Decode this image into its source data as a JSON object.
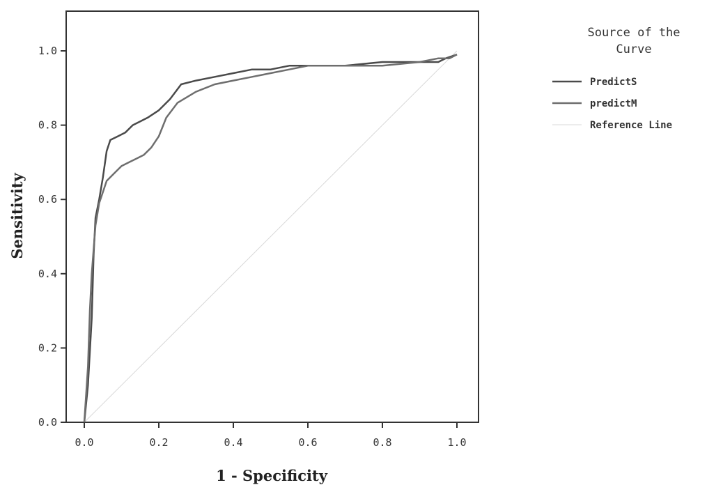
{
  "chart_data": {
    "type": "line",
    "xlabel": "1 - Specificity",
    "ylabel": "Sensitivity",
    "xlim": [
      0.0,
      1.0
    ],
    "ylim": [
      0.0,
      1.0
    ],
    "x_ticks": [
      "0.0",
      "0.2",
      "0.4",
      "0.6",
      "0.8",
      "1.0"
    ],
    "y_ticks": [
      "0.0",
      "0.2",
      "0.4",
      "0.6",
      "0.8",
      "1.0"
    ],
    "grid": false,
    "legend": {
      "title_line1": "Source of the",
      "title_line2": "Curve",
      "position": "top-right"
    },
    "series": [
      {
        "name": "PredictS",
        "color": "#4a4a4a",
        "x": [
          0.0,
          0.01,
          0.02,
          0.025,
          0.03,
          0.04,
          0.05,
          0.06,
          0.07,
          0.09,
          0.11,
          0.13,
          0.15,
          0.17,
          0.2,
          0.23,
          0.26,
          0.3,
          0.35,
          0.4,
          0.45,
          0.5,
          0.55,
          0.6,
          0.7,
          0.8,
          0.9,
          0.95,
          0.97,
          1.0
        ],
        "y": [
          0.0,
          0.1,
          0.28,
          0.45,
          0.55,
          0.6,
          0.66,
          0.73,
          0.76,
          0.77,
          0.78,
          0.8,
          0.81,
          0.82,
          0.84,
          0.87,
          0.91,
          0.92,
          0.93,
          0.94,
          0.95,
          0.95,
          0.96,
          0.96,
          0.96,
          0.97,
          0.97,
          0.97,
          0.98,
          0.99
        ]
      },
      {
        "name": "predictM",
        "color": "#6e6e6e",
        "x": [
          0.0,
          0.01,
          0.015,
          0.02,
          0.03,
          0.04,
          0.05,
          0.06,
          0.08,
          0.1,
          0.12,
          0.14,
          0.16,
          0.18,
          0.2,
          0.22,
          0.25,
          0.3,
          0.35,
          0.4,
          0.45,
          0.5,
          0.55,
          0.6,
          0.7,
          0.8,
          0.9,
          0.95,
          0.98,
          1.0
        ],
        "y": [
          0.0,
          0.15,
          0.3,
          0.4,
          0.53,
          0.59,
          0.62,
          0.65,
          0.67,
          0.69,
          0.7,
          0.71,
          0.72,
          0.74,
          0.77,
          0.82,
          0.86,
          0.89,
          0.91,
          0.92,
          0.93,
          0.94,
          0.95,
          0.96,
          0.96,
          0.96,
          0.97,
          0.98,
          0.98,
          0.99
        ]
      },
      {
        "name": "Reference Line",
        "color": "#d8d8d8",
        "x": [
          0.0,
          1.0
        ],
        "y": [
          0.0,
          1.0
        ]
      }
    ]
  }
}
